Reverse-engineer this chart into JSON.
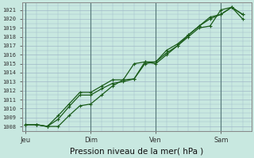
{
  "title": "Pression niveau de la mer( hPa )",
  "ylabel_values": [
    1008,
    1009,
    1010,
    1011,
    1012,
    1013,
    1014,
    1015,
    1016,
    1017,
    1018,
    1019,
    1020,
    1021
  ],
  "ylim": [
    1007.5,
    1021.8
  ],
  "background_color": "#c8e8e0",
  "plot_bg_color": "#c8e8e0",
  "grid_color": "#a0b8c8",
  "line_color": "#1a5c1a",
  "xtick_labels": [
    "Jeu",
    "Dim",
    "Ven",
    "Sam"
  ],
  "xtick_positions": [
    0,
    3,
    6,
    9
  ],
  "series1_x": [
    0,
    0.5,
    1.0,
    1.5,
    2.0,
    2.5,
    3.0,
    3.5,
    4.0,
    4.5,
    5.0,
    5.5,
    6.0,
    6.5,
    7.0,
    7.5,
    8.0,
    8.5,
    9.0,
    9.5,
    10.0
  ],
  "series1_y": [
    1008.2,
    1008.2,
    1008.0,
    1008.0,
    1009.2,
    1010.3,
    1010.5,
    1011.5,
    1012.5,
    1013.2,
    1013.3,
    1015.2,
    1015.2,
    1016.2,
    1017.0,
    1018.0,
    1019.0,
    1019.2,
    1021.0,
    1021.3,
    1020.5
  ],
  "series2_x": [
    0,
    0.5,
    1.0,
    1.5,
    2.0,
    2.5,
    3.0,
    3.5,
    4.0,
    4.5,
    5.0,
    5.5,
    6.0,
    6.5,
    7.0,
    7.5,
    8.0,
    8.5,
    9.0,
    9.5,
    10.0
  ],
  "series2_y": [
    1008.2,
    1008.2,
    1008.0,
    1008.8,
    1010.2,
    1011.5,
    1011.5,
    1012.2,
    1012.8,
    1013.0,
    1013.3,
    1015.0,
    1015.2,
    1016.5,
    1017.2,
    1018.2,
    1019.2,
    1020.0,
    1020.5,
    1021.3,
    1020.5
  ],
  "series3_x": [
    0,
    0.5,
    1.0,
    1.5,
    2.0,
    2.5,
    3.0,
    3.5,
    4.0,
    4.5,
    5.0,
    5.5,
    6.0,
    6.5,
    7.0,
    7.5,
    8.0,
    8.5,
    9.0,
    9.5,
    10.0
  ],
  "series3_y": [
    1008.2,
    1008.2,
    1008.0,
    1009.2,
    1010.5,
    1011.8,
    1011.8,
    1012.5,
    1013.2,
    1013.2,
    1015.0,
    1015.2,
    1015.0,
    1016.0,
    1017.0,
    1018.2,
    1019.2,
    1020.2,
    1020.5,
    1021.3,
    1020.0
  ],
  "vline_color": "#557777",
  "vline_positions": [
    0,
    3,
    6,
    9
  ],
  "xmin": -0.15,
  "xmax": 10.4
}
